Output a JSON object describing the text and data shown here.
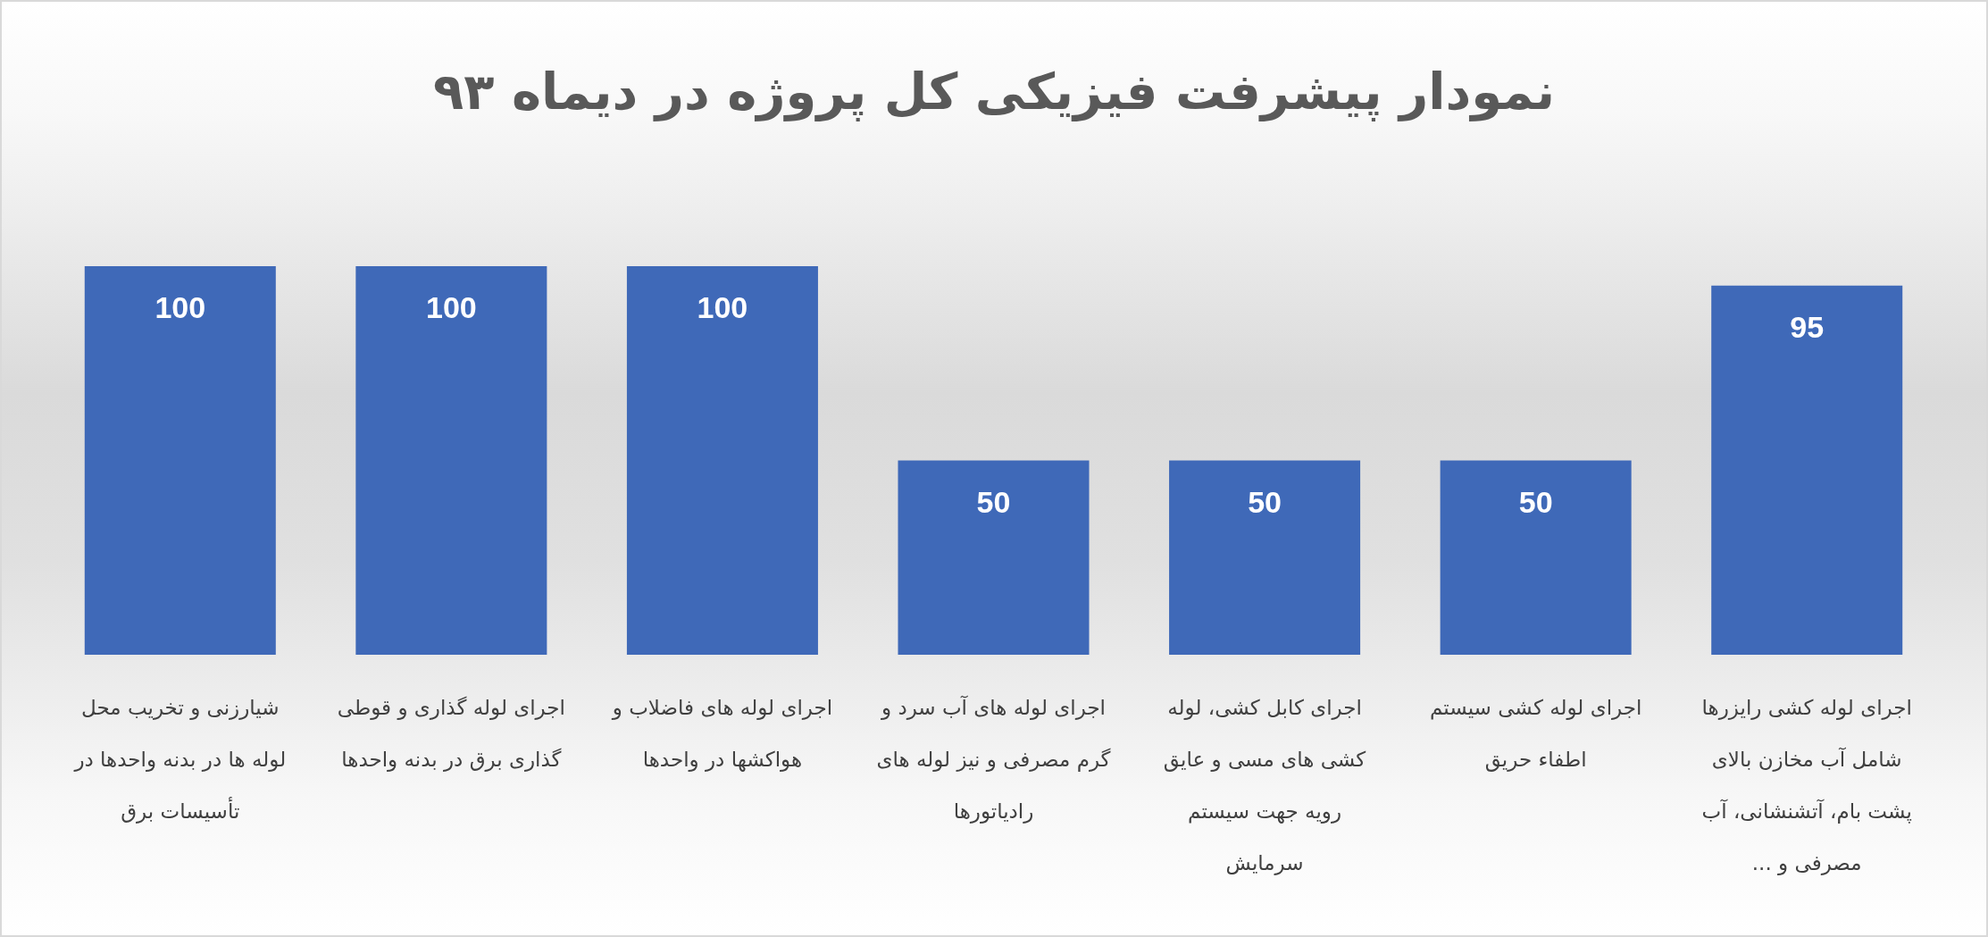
{
  "chart_data": {
    "type": "bar",
    "title": "نمودار پیشرفت فیزیکی کل پروژه در دیماه ۹۳",
    "categories": [
      "شیارزنی و تخریب محل لوله ها در بدنه واحدها در تأسیسات برق",
      "اجرای لوله گذاری و قوطی گذاری برق در بدنه واحدها",
      "اجرای لوله های فاضلاب و هواکشها در واحدها",
      "اجرای لوله های آب سرد و گرم مصرفی و نیز لوله های رادیاتورها",
      "اجرای کابل کشی، لوله کشی های مسی و عایق رویه جهت سیستم سرمایش",
      "اجرای لوله کشی سیستم اطفاء حریق",
      "اجرای لوله کشی رایزرها شامل آب مخازن بالای پشت بام، آتشنشانی، آب مصرفی و ..."
    ],
    "values": [
      100,
      100,
      100,
      50,
      50,
      50,
      95
    ],
    "color": "#3f69b8",
    "data_labels": true
  }
}
